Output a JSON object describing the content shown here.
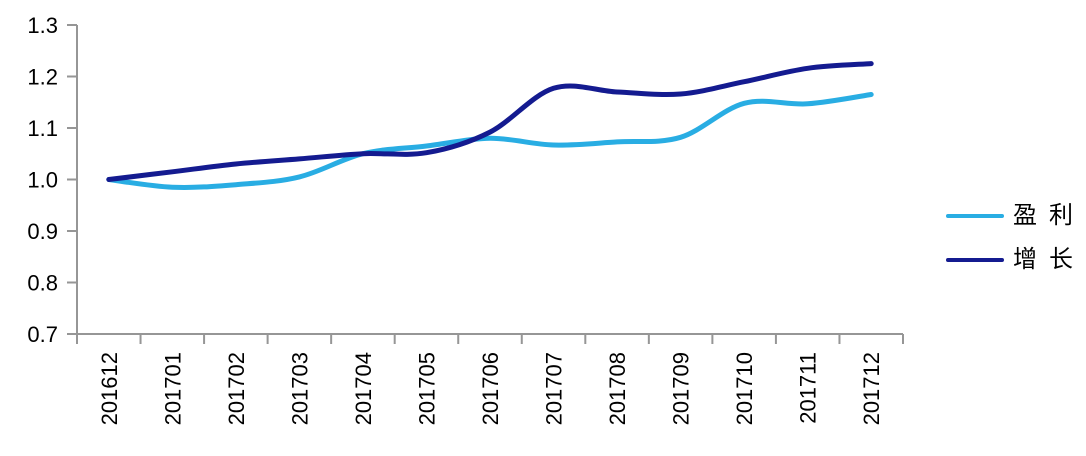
{
  "chart_data": {
    "type": "line",
    "smooth": true,
    "title": "",
    "xlabel": "",
    "ylabel": "",
    "grid": false,
    "legend_position": "right",
    "ylim": [
      0.7,
      1.3
    ],
    "ytick_labels": [
      "0.7",
      "0.8",
      "0.9",
      "1.0",
      "1.1",
      "1.2",
      "1.3"
    ],
    "categories": [
      "201612",
      "201701",
      "201702",
      "201703",
      "201704",
      "201705",
      "201706",
      "201707",
      "201708",
      "201709",
      "201710",
      "201711",
      "201712"
    ],
    "series": [
      {
        "id": "profit",
        "name": "盈利",
        "color": "#29ADE3",
        "values": [
          1.0,
          0.985,
          0.99,
          1.005,
          1.05,
          1.065,
          1.08,
          1.067,
          1.073,
          1.082,
          1.148,
          1.147,
          1.165
        ]
      },
      {
        "id": "growth",
        "name": "增长",
        "color": "#141B90",
        "values": [
          1.0,
          1.015,
          1.03,
          1.04,
          1.05,
          1.052,
          1.092,
          1.177,
          1.17,
          1.166,
          1.19,
          1.216,
          1.225
        ]
      }
    ],
    "axis_color": "#969696",
    "tick_label_color": "#000000"
  }
}
